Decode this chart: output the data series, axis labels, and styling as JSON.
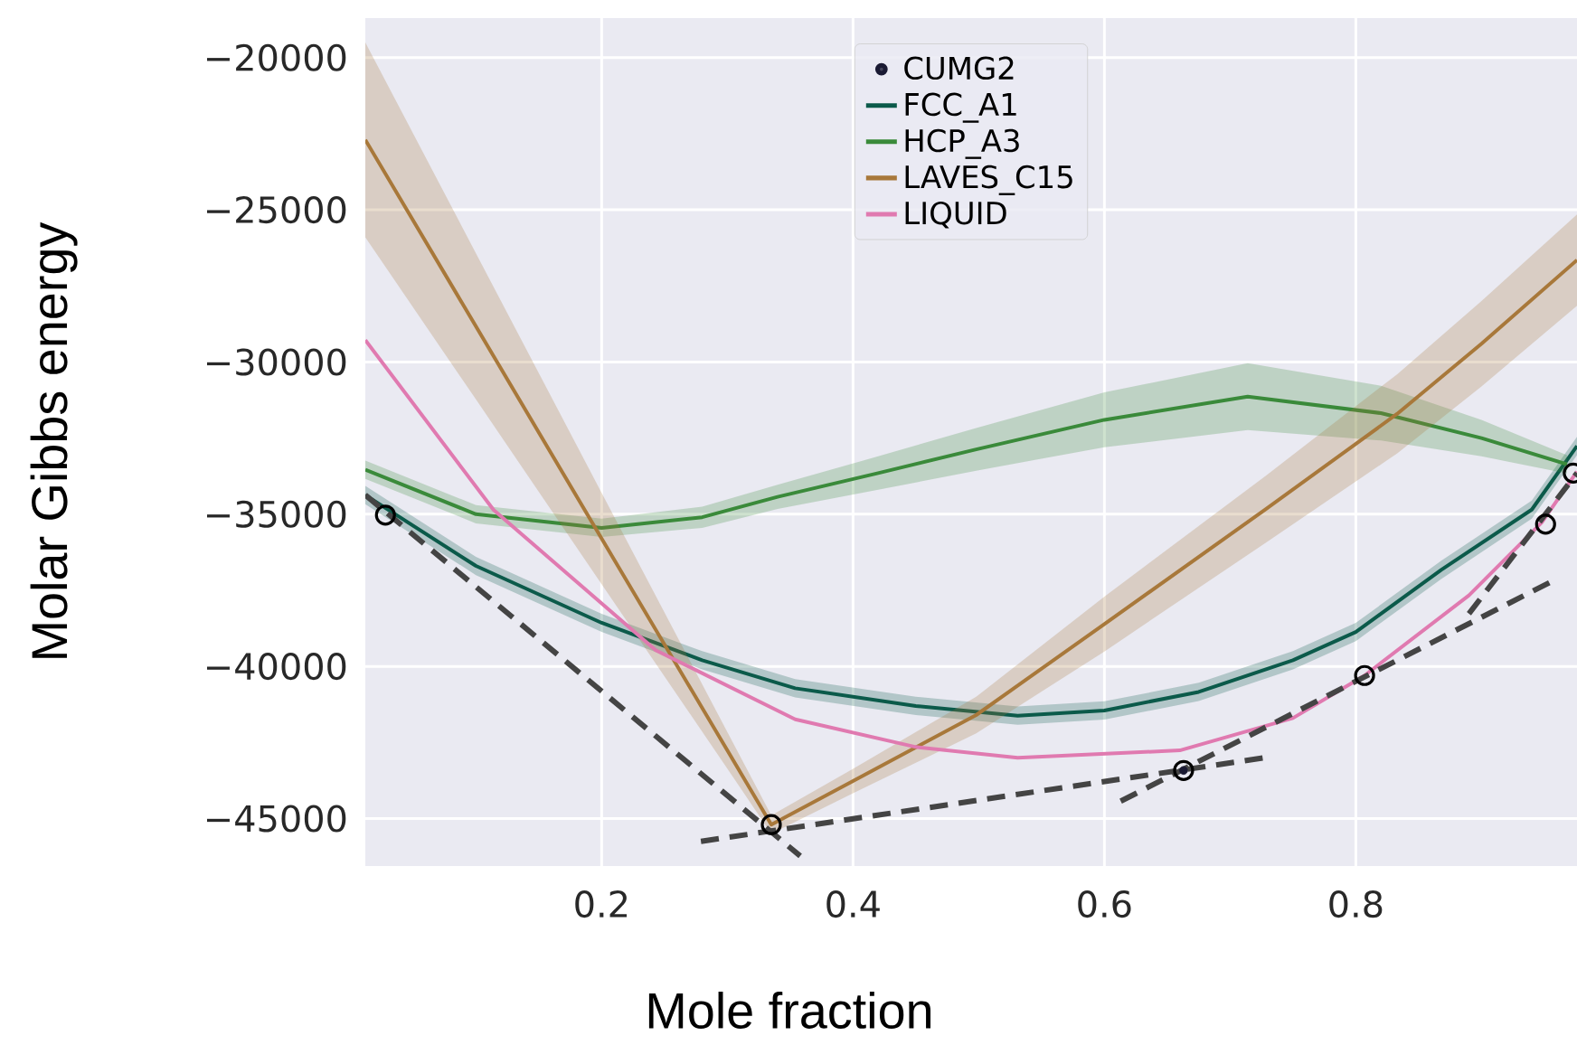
{
  "chart_data": {
    "type": "line",
    "xlabel": "Mole fraction",
    "ylabel": "Molar Gibbs energy",
    "xlim": [
      0.012,
      0.976
    ],
    "ylim": [
      -46560,
      -18700
    ],
    "xticks": [
      0.2,
      0.4,
      0.6,
      0.8
    ],
    "yticks": [
      {
        "value": -45000,
        "label": "−45000"
      },
      {
        "value": -40000,
        "label": "−40000"
      },
      {
        "value": -35000,
        "label": "−35000"
      },
      {
        "value": -30000,
        "label": "−30000"
      },
      {
        "value": -25000,
        "label": "−25000"
      },
      {
        "value": -20000,
        "label": "−20000"
      }
    ],
    "grid": true,
    "legend": "top",
    "series": [
      {
        "name": "CUMG2",
        "type": "scatter",
        "marker": "circle",
        "color": "#1a1a33",
        "x": [
          0.663
        ],
        "values": [
          -43420
        ]
      },
      {
        "name": "FCC_A1",
        "color": "#0b5a4a",
        "x": [
          0.012,
          0.1,
          0.2,
          0.28,
          0.354,
          0.45,
          0.531,
          0.6,
          0.675,
          0.75,
          0.8,
          0.868,
          0.94,
          0.976
        ],
        "values": [
          -34370,
          -36700,
          -38570,
          -39800,
          -40720,
          -41300,
          -41620,
          -41450,
          -40840,
          -39800,
          -38870,
          -36830,
          -34850,
          -32760
        ],
        "lower": [
          -34670,
          -37000,
          -38870,
          -40100,
          -41020,
          -41600,
          -41920,
          -41750,
          -41140,
          -40100,
          -39170,
          -37130,
          -35150,
          -33060
        ],
        "upper": [
          -34070,
          -36400,
          -38270,
          -39500,
          -40420,
          -41000,
          -41320,
          -41150,
          -40540,
          -39500,
          -38570,
          -36530,
          -34550,
          -32460
        ]
      },
      {
        "name": "HCP_A3",
        "color": "#3a8a3a",
        "x": [
          0.012,
          0.1,
          0.2,
          0.28,
          0.34,
          0.42,
          0.498,
          0.6,
          0.714,
          0.82,
          0.9,
          0.968
        ],
        "values": [
          -33540,
          -35000,
          -35450,
          -35100,
          -34430,
          -33650,
          -32870,
          -31900,
          -31140,
          -31680,
          -32500,
          -33360
        ],
        "lower": [
          -33840,
          -35300,
          -35750,
          -35450,
          -34830,
          -34200,
          -33570,
          -32800,
          -32240,
          -32580,
          -33100,
          -33660
        ],
        "upper": [
          -33240,
          -34700,
          -35150,
          -34750,
          -34030,
          -33100,
          -32170,
          -31000,
          -30040,
          -30780,
          -31900,
          -33060
        ]
      },
      {
        "name": "LAVES_C15",
        "color": "#a8783a",
        "x": [
          0.012,
          0.1,
          0.2,
          0.3,
          0.335,
          0.4,
          0.498,
          0.6,
          0.728,
          0.833,
          0.9,
          0.976
        ],
        "values": [
          -22700,
          -28830,
          -35800,
          -42760,
          -45200,
          -43770,
          -41600,
          -38610,
          -34850,
          -31700,
          -29400,
          -26650
        ],
        "lower": [
          -25900,
          -31230,
          -37300,
          -43360,
          -45500,
          -44170,
          -42200,
          -39510,
          -35950,
          -33000,
          -30800,
          -28150
        ],
        "upper": [
          -19500,
          -26430,
          -34300,
          -42160,
          -44900,
          -43370,
          -41000,
          -37710,
          -33750,
          -30400,
          -28000,
          -25150
        ]
      },
      {
        "name": "LIQUID",
        "color": "#e07ab0",
        "x": [
          0.012,
          0.114,
          0.243,
          0.354,
          0.45,
          0.531,
          0.66,
          0.75,
          0.807,
          0.89,
          0.948,
          0.976
        ],
        "values": [
          -29280,
          -34860,
          -39470,
          -41740,
          -42650,
          -43000,
          -42760,
          -41700,
          -40300,
          -37670,
          -35270,
          -33600
        ]
      },
      {
        "line_style": "dashed",
        "color": "#444444",
        "x": [
          0.012,
          0.358
        ],
        "values": [
          -34370,
          -46230
        ]
      },
      {
        "line_style": "dashed",
        "color": "#444444",
        "x": [
          0.279,
          0.728
        ],
        "values": [
          -45750,
          -43000
        ]
      },
      {
        "line_style": "dashed",
        "color": "#444444",
        "x": [
          0.613,
          0.954
        ],
        "values": [
          -44430,
          -37250
        ]
      },
      {
        "line_style": "dashed",
        "color": "#444444",
        "x": [
          0.89,
          0.976
        ],
        "values": [
          -38270,
          -33650
        ]
      },
      {
        "type": "scatter",
        "marker": "open circle",
        "color": "#000000",
        "x": [
          0.028,
          0.335,
          0.663,
          0.807,
          0.951,
          0.973
        ],
        "values": [
          -35030,
          -45200,
          -43420,
          -40300,
          -35330,
          -33650
        ]
      }
    ]
  }
}
